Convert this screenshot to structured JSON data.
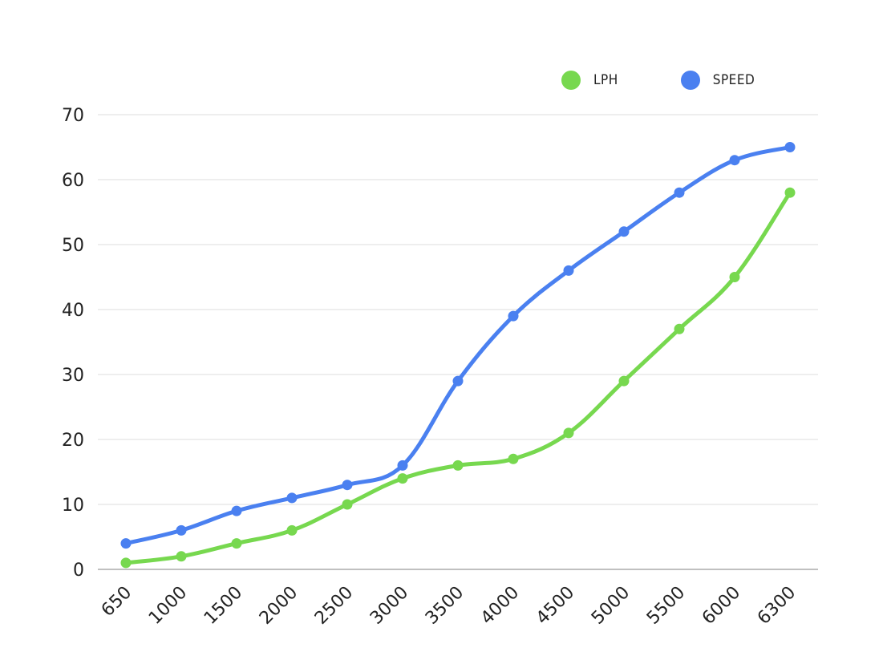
{
  "chart_data": {
    "type": "line",
    "title": "",
    "xlabel": "",
    "ylabel": "",
    "categories": [
      "650",
      "1000",
      "1500",
      "2000",
      "2500",
      "3000",
      "3500",
      "4000",
      "4500",
      "5000",
      "5500",
      "6000",
      "6300"
    ],
    "ylim": [
      0,
      70
    ],
    "yticks": [
      0,
      10,
      20,
      30,
      40,
      50,
      60,
      70
    ],
    "grid": true,
    "legend_position": "top-right",
    "series": [
      {
        "name": "LPH",
        "color": "#77d84f",
        "values": [
          1,
          2,
          4,
          6,
          10,
          14,
          16,
          17,
          21,
          29,
          37,
          45,
          58
        ]
      },
      {
        "name": "SPEED",
        "color": "#4a80f0",
        "values": [
          4,
          6,
          9,
          11,
          13,
          16,
          29,
          39,
          46,
          52,
          58,
          63,
          65
        ]
      }
    ]
  }
}
